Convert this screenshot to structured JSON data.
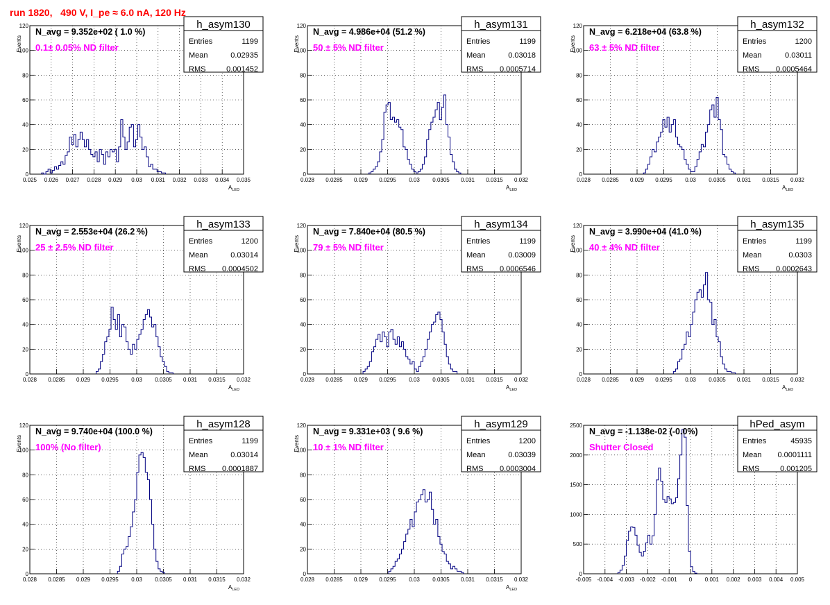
{
  "page_title": "run 1820,   490 V, I_pe ≈ 6.0 nA, 120 Hz",
  "chart_data": [
    {
      "type": "histogram",
      "name": "h_asym130",
      "header": "N_avg = 9.352e+02 ( 1.0 %)",
      "filter": "0.1± 0.05% ND filter",
      "stats": {
        "entries": "1199",
        "mean": "0.02935",
        "rms": "0.001452"
      },
      "ylabel": "Events",
      "xlabel": "A",
      "xlabel_sub": "LED",
      "xlim": [
        0.025,
        0.035
      ],
      "ylim": [
        0,
        120
      ],
      "xticks": [
        0.025,
        0.026,
        0.027,
        0.028,
        0.029,
        0.03,
        0.031,
        0.032,
        0.033,
        0.034,
        0.035
      ],
      "xtick_labels": [
        "0.025",
        "0.026",
        "0.027",
        "0.028",
        "0.029",
        "0.03",
        "0.031",
        "0.032",
        "0.033",
        "0.034",
        "0.035"
      ],
      "yticks": [
        0,
        20,
        40,
        60,
        80,
        100,
        120
      ],
      "ytick_labels": [
        "0",
        "20",
        "40",
        "60",
        "80",
        "100",
        "120"
      ],
      "bin_start": 0.02555,
      "bin_width": 0.0001,
      "counts": [
        1,
        0,
        2,
        4,
        1,
        3,
        6,
        4,
        7,
        10,
        8,
        15,
        18,
        30,
        24,
        32,
        22,
        28,
        34,
        28,
        22,
        28,
        20,
        16,
        14,
        18,
        10,
        20,
        16,
        8,
        18,
        14,
        20,
        18,
        20,
        10,
        22,
        44,
        30,
        20,
        26,
        38,
        40,
        22,
        28,
        40,
        30,
        20,
        22,
        14,
        6,
        8,
        4,
        4,
        2,
        2,
        1,
        1
      ]
    },
    {
      "type": "histogram",
      "name": "h_asym131",
      "header": "N_avg = 4.986e+04 (51.2 %)",
      "filter": "50 ± 5% ND filter",
      "stats": {
        "entries": "1199",
        "mean": "0.03018",
        "rms": "0.0005714"
      },
      "ylabel": "Events",
      "xlabel": "A",
      "xlabel_sub": "LED",
      "xlim": [
        0.028,
        0.032
      ],
      "ylim": [
        0,
        120
      ],
      "xticks": [
        0.028,
        0.0285,
        0.029,
        0.0295,
        0.03,
        0.0305,
        0.031,
        0.0315,
        0.032
      ],
      "xtick_labels": [
        "0.028",
        "0.0285",
        "0.029",
        "0.0295",
        "0.03",
        "0.0305",
        "0.031",
        "0.0315",
        "0.032"
      ],
      "yticks": [
        0,
        20,
        40,
        60,
        80,
        100,
        120
      ],
      "ytick_labels": [
        "0",
        "20",
        "40",
        "60",
        "80",
        "100",
        "120"
      ],
      "bin_start": 0.02915,
      "bin_width": 4e-05,
      "counts": [
        1,
        2,
        4,
        6,
        10,
        18,
        28,
        50,
        56,
        58,
        44,
        46,
        42,
        44,
        38,
        36,
        22,
        20,
        12,
        8,
        4,
        2,
        1,
        2,
        4,
        8,
        14,
        28,
        36,
        42,
        46,
        52,
        58,
        44,
        54,
        64,
        40,
        30,
        16,
        10,
        4,
        2,
        1
      ]
    },
    {
      "type": "histogram",
      "name": "h_asym132",
      "header": "N_avg = 6.218e+04 (63.8 %)",
      "filter": "63 ± 5% ND filter",
      "stats": {
        "entries": "1200",
        "mean": "0.03011",
        "rms": "0.0005464"
      },
      "ylabel": "Events",
      "xlabel": "A",
      "xlabel_sub": "LED",
      "xlim": [
        0.028,
        0.032
      ],
      "ylim": [
        0,
        120
      ],
      "xticks": [
        0.028,
        0.0285,
        0.029,
        0.0295,
        0.03,
        0.0305,
        0.031,
        0.0315,
        0.032
      ],
      "xtick_labels": [
        "0.028",
        "0.0285",
        "0.029",
        "0.0295",
        "0.03",
        "0.0305",
        "0.031",
        "0.0315",
        "0.032"
      ],
      "yticks": [
        0,
        20,
        40,
        60,
        80,
        100,
        120
      ],
      "ytick_labels": [
        "0",
        "20",
        "40",
        "60",
        "80",
        "100",
        "120"
      ],
      "bin_start": 0.02912,
      "bin_width": 4e-05,
      "counts": [
        1,
        4,
        8,
        14,
        20,
        18,
        26,
        30,
        34,
        44,
        38,
        46,
        34,
        40,
        44,
        30,
        24,
        22,
        20,
        12,
        8,
        4,
        2,
        2,
        6,
        12,
        18,
        24,
        22,
        34,
        40,
        52,
        56,
        46,
        62,
        44,
        36,
        16,
        14,
        8,
        4,
        2,
        1
      ]
    },
    {
      "type": "histogram",
      "name": "h_asym133",
      "header": "N_avg = 2.553e+04 (26.2 %)",
      "filter": "25 ± 2.5% ND filter",
      "stats": {
        "entries": "1200",
        "mean": "0.03014",
        "rms": "0.0004502"
      },
      "ylabel": "Events",
      "xlabel": "A",
      "xlabel_sub": "LED",
      "xlim": [
        0.028,
        0.032
      ],
      "ylim": [
        0,
        120
      ],
      "xticks": [
        0.028,
        0.0285,
        0.029,
        0.0295,
        0.03,
        0.0305,
        0.031,
        0.0315,
        0.032
      ],
      "xtick_labels": [
        "0.028",
        "0.0285",
        "0.029",
        "0.0295",
        "0.03",
        "0.0305",
        "0.031",
        "0.0315",
        "0.032"
      ],
      "yticks": [
        0,
        20,
        40,
        60,
        80,
        100,
        120
      ],
      "ytick_labels": [
        "0",
        "20",
        "40",
        "60",
        "80",
        "100",
        "120"
      ],
      "bin_start": 0.02924,
      "bin_width": 4e-05,
      "counts": [
        2,
        4,
        10,
        16,
        26,
        30,
        36,
        54,
        44,
        36,
        48,
        30,
        40,
        38,
        26,
        20,
        16,
        24,
        20,
        28,
        32,
        36,
        44,
        48,
        52,
        46,
        38,
        40,
        30,
        22,
        14,
        10,
        6,
        2,
        1,
        1
      ]
    },
    {
      "type": "histogram",
      "name": "h_asym134",
      "header": "N_avg = 7.840e+04 (80.5 %)",
      "filter": "79 ± 5% ND filter",
      "stats": {
        "entries": "1199",
        "mean": "0.03009",
        "rms": "0.0006546"
      },
      "ylabel": "Events",
      "xlabel": "A",
      "xlabel_sub": "LED",
      "xlim": [
        0.028,
        0.032
      ],
      "ylim": [
        0,
        120
      ],
      "xticks": [
        0.028,
        0.0285,
        0.029,
        0.0295,
        0.03,
        0.0305,
        0.031,
        0.0315,
        0.032
      ],
      "xtick_labels": [
        "0.028",
        "0.0285",
        "0.029",
        "0.0295",
        "0.03",
        "0.0305",
        "0.031",
        "0.0315",
        "0.032"
      ],
      "yticks": [
        0,
        20,
        40,
        60,
        80,
        100,
        120
      ],
      "ytick_labels": [
        "0",
        "20",
        "40",
        "60",
        "80",
        "100",
        "120"
      ],
      "bin_start": 0.02904,
      "bin_width": 4e-05,
      "counts": [
        2,
        4,
        6,
        10,
        18,
        22,
        28,
        32,
        26,
        34,
        30,
        22,
        34,
        36,
        28,
        24,
        30,
        22,
        26,
        20,
        14,
        12,
        8,
        10,
        4,
        2,
        6,
        10,
        14,
        20,
        28,
        34,
        40,
        42,
        48,
        50,
        44,
        34,
        24,
        14,
        8,
        4,
        2,
        2
      ]
    },
    {
      "type": "histogram",
      "name": "h_asym135",
      "header": "N_avg = 3.990e+04 (41.0 %)",
      "filter": "40 ± 4% ND filter",
      "stats": {
        "entries": "1199",
        "mean": "0.0303",
        "rms": "0.0002643"
      },
      "ylabel": "Events",
      "xlabel": "A",
      "xlabel_sub": "LED",
      "xlim": [
        0.028,
        0.032
      ],
      "ylim": [
        0,
        120
      ],
      "xticks": [
        0.028,
        0.0285,
        0.029,
        0.0295,
        0.03,
        0.0305,
        0.031,
        0.0315,
        0.032
      ],
      "xtick_labels": [
        "0.028",
        "0.0285",
        "0.029",
        "0.0295",
        "0.03",
        "0.0305",
        "0.031",
        "0.0315",
        "0.032"
      ],
      "yticks": [
        0,
        20,
        40,
        60,
        80,
        100,
        120
      ],
      "ytick_labels": [
        "0",
        "20",
        "40",
        "60",
        "80",
        "100",
        "120"
      ],
      "bin_start": 0.02968,
      "bin_width": 4e-05,
      "counts": [
        2,
        4,
        10,
        12,
        20,
        24,
        34,
        30,
        40,
        50,
        60,
        66,
        68,
        62,
        72,
        82,
        60,
        58,
        40,
        44,
        30,
        26,
        14,
        8,
        4,
        2,
        2,
        1,
        1
      ]
    },
    {
      "type": "histogram",
      "name": "h_asym128",
      "header": "N_avg = 9.740e+04 (100.0 %)",
      "filter": "100% (No filter)",
      "stats": {
        "entries": "1199",
        "mean": "0.03014",
        "rms": "0.0001887"
      },
      "ylabel": "Events",
      "xlabel": "A",
      "xlabel_sub": "LED",
      "xlim": [
        0.028,
        0.032
      ],
      "ylim": [
        0,
        120
      ],
      "xticks": [
        0.028,
        0.0285,
        0.029,
        0.0295,
        0.03,
        0.0305,
        0.031,
        0.0315,
        0.032
      ],
      "xtick_labels": [
        "0.028",
        "0.0285",
        "0.029",
        "0.0295",
        "0.03",
        "0.0305",
        "0.031",
        "0.0315",
        "0.032"
      ],
      "yticks": [
        0,
        20,
        40,
        60,
        80,
        100,
        120
      ],
      "ytick_labels": [
        "0",
        "20",
        "40",
        "60",
        "80",
        "100",
        "120"
      ],
      "bin_start": 0.02964,
      "bin_width": 4e-05,
      "counts": [
        2,
        6,
        16,
        20,
        22,
        30,
        38,
        50,
        60,
        82,
        96,
        98,
        94,
        82,
        76,
        60,
        40,
        20,
        10,
        4,
        2,
        1
      ]
    },
    {
      "type": "histogram",
      "name": "h_asym129",
      "header": "N_avg = 9.331e+03 ( 9.6 %)",
      "filter": "10 ± 1% ND filter",
      "stats": {
        "entries": "1200",
        "mean": "0.03039",
        "rms": "0.0003004"
      },
      "ylabel": "Events",
      "xlabel": "A",
      "xlabel_sub": "LED",
      "xlim": [
        0.028,
        0.032
      ],
      "ylim": [
        0,
        120
      ],
      "xticks": [
        0.028,
        0.0285,
        0.029,
        0.0295,
        0.03,
        0.0305,
        0.031,
        0.0315,
        0.032
      ],
      "xtick_labels": [
        "0.028",
        "0.0285",
        "0.029",
        "0.0295",
        "0.03",
        "0.0305",
        "0.031",
        "0.0315",
        "0.032"
      ],
      "yticks": [
        0,
        20,
        40,
        60,
        80,
        100,
        120
      ],
      "ytick_labels": [
        "0",
        "20",
        "40",
        "60",
        "80",
        "100",
        "120"
      ],
      "bin_start": 0.02952,
      "bin_width": 4e-05,
      "counts": [
        2,
        4,
        6,
        10,
        12,
        16,
        20,
        26,
        32,
        36,
        44,
        38,
        50,
        58,
        60,
        64,
        68,
        58,
        60,
        66,
        52,
        40,
        44,
        30,
        24,
        18,
        16,
        10,
        8,
        4,
        6,
        4,
        2,
        2,
        1
      ]
    },
    {
      "type": "histogram",
      "name": "hPed_asym",
      "header": "N_avg = -1.138e-02 (-0.0%)",
      "filter": "Shutter Closed",
      "stats": {
        "entries": "45935",
        "mean": "0.0001111",
        "rms": "0.001205"
      },
      "ylabel": "",
      "xlabel": "",
      "xlabel_sub": "",
      "xlim": [
        -0.005,
        0.005
      ],
      "ylim": [
        0,
        2500
      ],
      "xticks": [
        -0.005,
        -0.004,
        -0.003,
        -0.002,
        -0.001,
        0,
        0.001,
        0.002,
        0.003,
        0.004,
        0.005
      ],
      "xtick_labels": [
        "-0.005",
        "-0.004",
        "-0.003",
        "-0.002",
        "-0.001",
        "0",
        "0.001",
        "0.002",
        "0.003",
        "0.004",
        "0.005"
      ],
      "yticks": [
        0,
        500,
        1000,
        1500,
        2000,
        2500
      ],
      "ytick_labels": [
        "0",
        "500",
        "1000",
        "1500",
        "2000",
        "2500"
      ],
      "bin_start": -0.0034,
      "bin_width": 0.0001,
      "counts": [
        20,
        60,
        140,
        300,
        560,
        720,
        790,
        780,
        650,
        480,
        360,
        300,
        380,
        520,
        650,
        500,
        640,
        1000,
        1580,
        1780,
        1560,
        1250,
        1200,
        1300,
        1260,
        1180,
        1200,
        1280,
        1600,
        2000,
        2430,
        2300,
        1150,
        380,
        120,
        40,
        10
      ]
    }
  ]
}
